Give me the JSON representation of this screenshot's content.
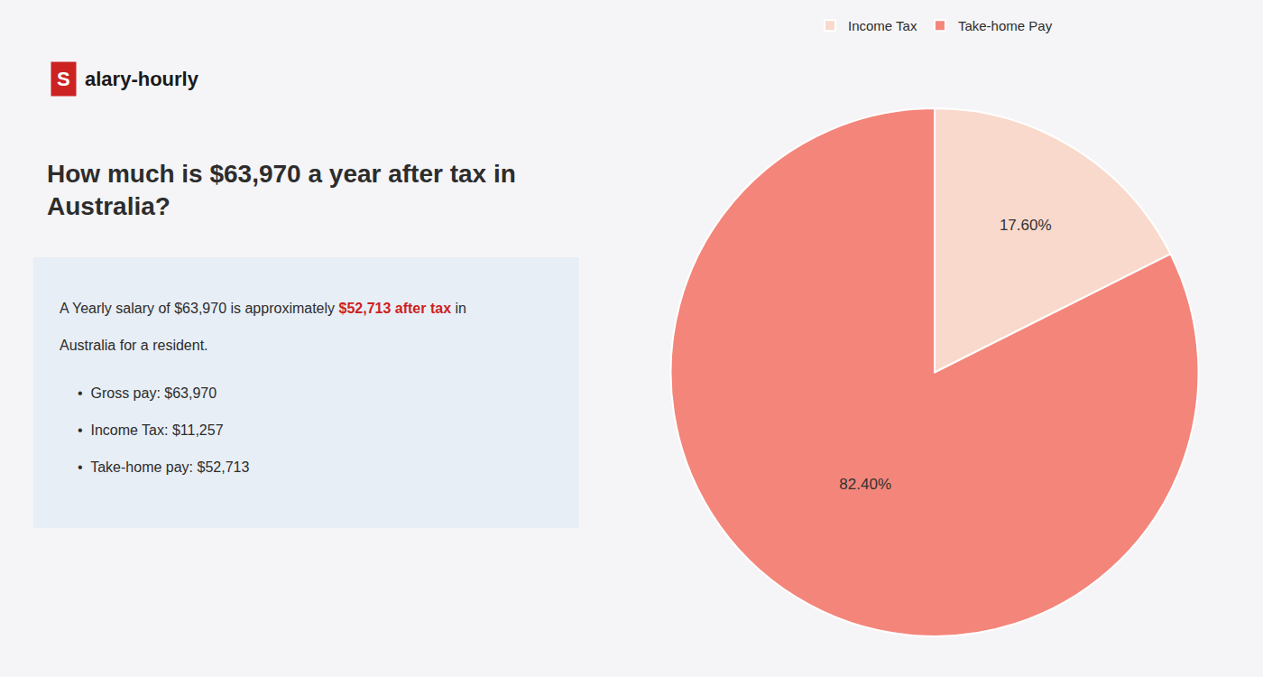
{
  "chart_data": {
    "type": "pie",
    "title": "How much is $63,970 a year after tax in\nAustralia?",
    "categories": [
      "Income Tax",
      "Take-home Pay"
    ],
    "values": [
      17.6,
      82.4
    ],
    "value_labels": [
      "17.60%",
      "82.40%"
    ],
    "colors": [
      "#f9d9cc",
      "#f4857a"
    ],
    "data_labels": true,
    "legend": "top",
    "annotations": [
      {
        "text": "S",
        "color": "#ffffff",
        "bgcolor": "#cc2222"
      },
      {
        "text": "alary-hourly"
      },
      {
        "text": "A Yearly salary of $63,970 is approximately $52,713 after tax in",
        "highlight": "$52,713 after tax",
        "highlight_color": "#cc2222"
      },
      {
        "text": "Australia for a resident."
      },
      {
        "text": "•  Gross pay: $63,970"
      },
      {
        "text": "•  Income Tax: $11,257"
      },
      {
        "text": "•  Take-home pay: $52,713"
      }
    ]
  }
}
